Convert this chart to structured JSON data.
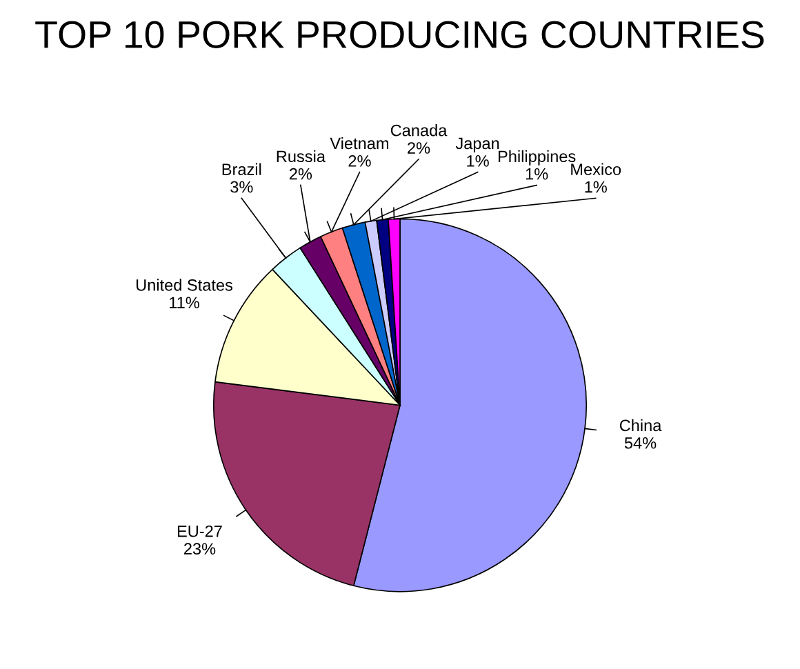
{
  "chart_data": {
    "type": "pie",
    "title": "TOP 10 PORK PRODUCING COUNTRIES",
    "categories": [
      "China",
      "EU-27",
      "United States",
      "Brazil",
      "Russia",
      "Vietnam",
      "Canada",
      "Japan",
      "Philippines",
      "Mexico"
    ],
    "values": [
      54,
      23,
      11,
      3,
      2,
      2,
      2,
      1,
      1,
      1
    ],
    "value_labels": [
      "54%",
      "23%",
      "11%",
      "3%",
      "2%",
      "2%",
      "2%",
      "1%",
      "1%",
      "1%"
    ],
    "colors": [
      "#9999ff",
      "#993366",
      "#ffffcc",
      "#ccffff",
      "#660066",
      "#ff8080",
      "#0066cc",
      "#ccccff",
      "#000080",
      "#ff00ff"
    ]
  }
}
